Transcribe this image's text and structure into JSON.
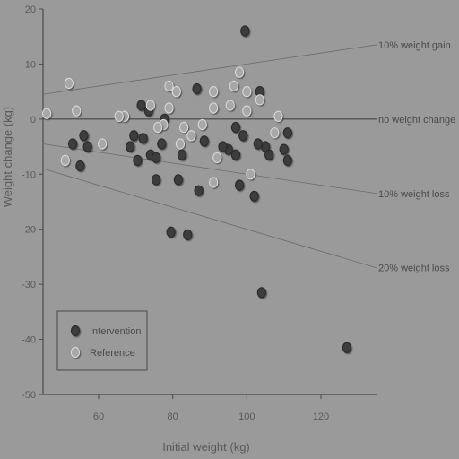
{
  "chart_data": {
    "type": "scatter",
    "xlabel": "Initial weight (kg)",
    "ylabel": "Weight change (kg)",
    "xlim": [
      45,
      135
    ],
    "ylim": [
      -50,
      20
    ],
    "xticks": [
      60,
      80,
      100,
      120
    ],
    "yticks": [
      -50,
      -40,
      -30,
      -20,
      -10,
      0,
      10,
      20
    ],
    "grid": false,
    "legend_position": "bottom-left",
    "colors": {
      "background": "#9a9a9a",
      "axis": "#4a4a4a",
      "intervention_fill": "#3d3d3d",
      "reference_fill": "#a8a8a8"
    },
    "reference_lines": [
      {
        "label": "10% weight gain",
        "fraction": 0.1
      },
      {
        "label": "no weight change",
        "fraction": 0.0
      },
      {
        "label": "10% weight loss",
        "fraction": -0.1
      },
      {
        "label": "20% weight loss",
        "fraction": -0.2
      }
    ],
    "series": [
      {
        "name": "Intervention",
        "marker": "filled",
        "points": [
          [
            99.5,
            16
          ],
          [
            86.5,
            5.5
          ],
          [
            103.5,
            5
          ],
          [
            71.5,
            2.5
          ],
          [
            73.5,
            1.5
          ],
          [
            77.8,
            0
          ],
          [
            69.5,
            -3
          ],
          [
            72,
            -3.5
          ],
          [
            56,
            -3
          ],
          [
            77,
            -4.5
          ],
          [
            53,
            -4.5
          ],
          [
            57,
            -5
          ],
          [
            68.5,
            -5
          ],
          [
            95,
            -5.5
          ],
          [
            105,
            -5
          ],
          [
            110,
            -5.5
          ],
          [
            97,
            -6.5
          ],
          [
            106,
            -6.5
          ],
          [
            74,
            -6.5
          ],
          [
            75.5,
            -7
          ],
          [
            70.5,
            -7.5
          ],
          [
            111,
            -7.5
          ],
          [
            55,
            -8.5
          ],
          [
            82.5,
            -6.5
          ],
          [
            75.5,
            -11
          ],
          [
            81.5,
            -11
          ],
          [
            98,
            -12
          ],
          [
            102,
            -14
          ],
          [
            88.5,
            -4
          ],
          [
            87,
            -13
          ],
          [
            97,
            -1.5
          ],
          [
            99,
            -3
          ],
          [
            79.5,
            -20.5
          ],
          [
            84,
            -21
          ],
          [
            104,
            -31.5
          ],
          [
            127,
            -41.5
          ],
          [
            111,
            -2.5
          ],
          [
            103,
            -4.5
          ],
          [
            93.5,
            -5
          ]
        ]
      },
      {
        "name": "Reference",
        "marker": "open",
        "points": [
          [
            52,
            6.5
          ],
          [
            98,
            8.5
          ],
          [
            79,
            6
          ],
          [
            81,
            5
          ],
          [
            91,
            5
          ],
          [
            96.5,
            6
          ],
          [
            100,
            5
          ],
          [
            103.5,
            3.5
          ],
          [
            74,
            2.5
          ],
          [
            91,
            2
          ],
          [
            95.5,
            2.5
          ],
          [
            100,
            1.5
          ],
          [
            79,
            2
          ],
          [
            54,
            1.5
          ],
          [
            46,
            1
          ],
          [
            67,
            0.5
          ],
          [
            65.5,
            0.5
          ],
          [
            108.5,
            0.5
          ],
          [
            77.5,
            -1
          ],
          [
            83,
            -1.5
          ],
          [
            76,
            -1.5
          ],
          [
            88,
            -1
          ],
          [
            107.5,
            -2.5
          ],
          [
            85,
            -3
          ],
          [
            61,
            -4.5
          ],
          [
            82,
            -4.5
          ],
          [
            92,
            -7
          ],
          [
            51,
            -7.5
          ],
          [
            101,
            -10
          ],
          [
            91,
            -11.5
          ]
        ]
      }
    ]
  }
}
